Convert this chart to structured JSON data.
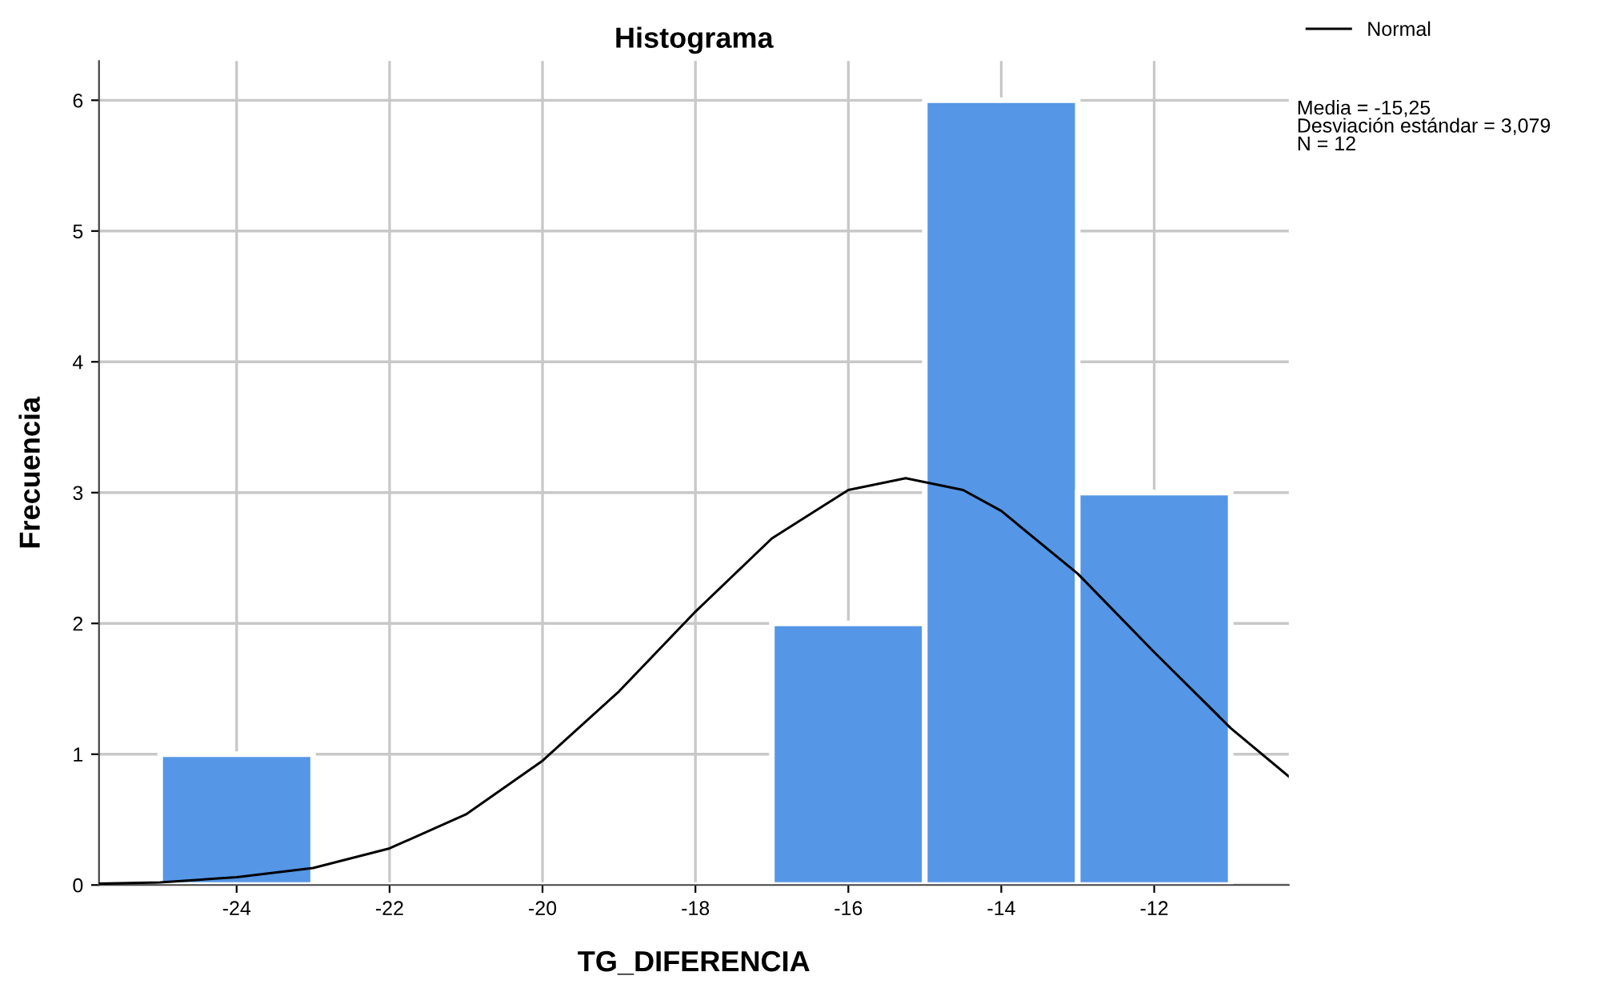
{
  "chart_data": {
    "type": "histogram",
    "title": "Histograma",
    "xlabel": "TG_DIFERENCIA",
    "ylabel": "Frecuencia",
    "bins": [
      -25,
      -23,
      -21,
      -19,
      -17,
      -15,
      -13,
      -11
    ],
    "values": [
      1,
      0,
      0,
      0,
      2,
      6,
      3
    ],
    "color": "#5596e6",
    "series": [
      {
        "name": "Normal",
        "type": "line",
        "color": "#000000",
        "x": [
          -25.8,
          -25,
          -24,
          -23,
          -22,
          -21,
          -20,
          -19,
          -18,
          -17,
          -16,
          -15.25,
          -14.5,
          -14,
          -13,
          -12,
          -11,
          -10.24
        ],
        "values": [
          0.01,
          0.02,
          0.06,
          0.13,
          0.28,
          0.54,
          0.95,
          1.48,
          2.09,
          2.65,
          3.02,
          3.11,
          3.02,
          2.86,
          2.38,
          1.78,
          1.2,
          0.83
        ]
      }
    ],
    "xlim": [
      -25.8,
      -10.24
    ],
    "xticks": [
      -24,
      -22,
      -20,
      -18,
      -16,
      -14,
      -12
    ],
    "ylim": [
      0,
      6.3
    ],
    "yticks": [
      0,
      1,
      2,
      3,
      4,
      5,
      6
    ],
    "grid": true,
    "legend": "top right",
    "annotations": [
      "Media = -15,25\nDesviación estándar = 3,079\nN = 12"
    ]
  }
}
